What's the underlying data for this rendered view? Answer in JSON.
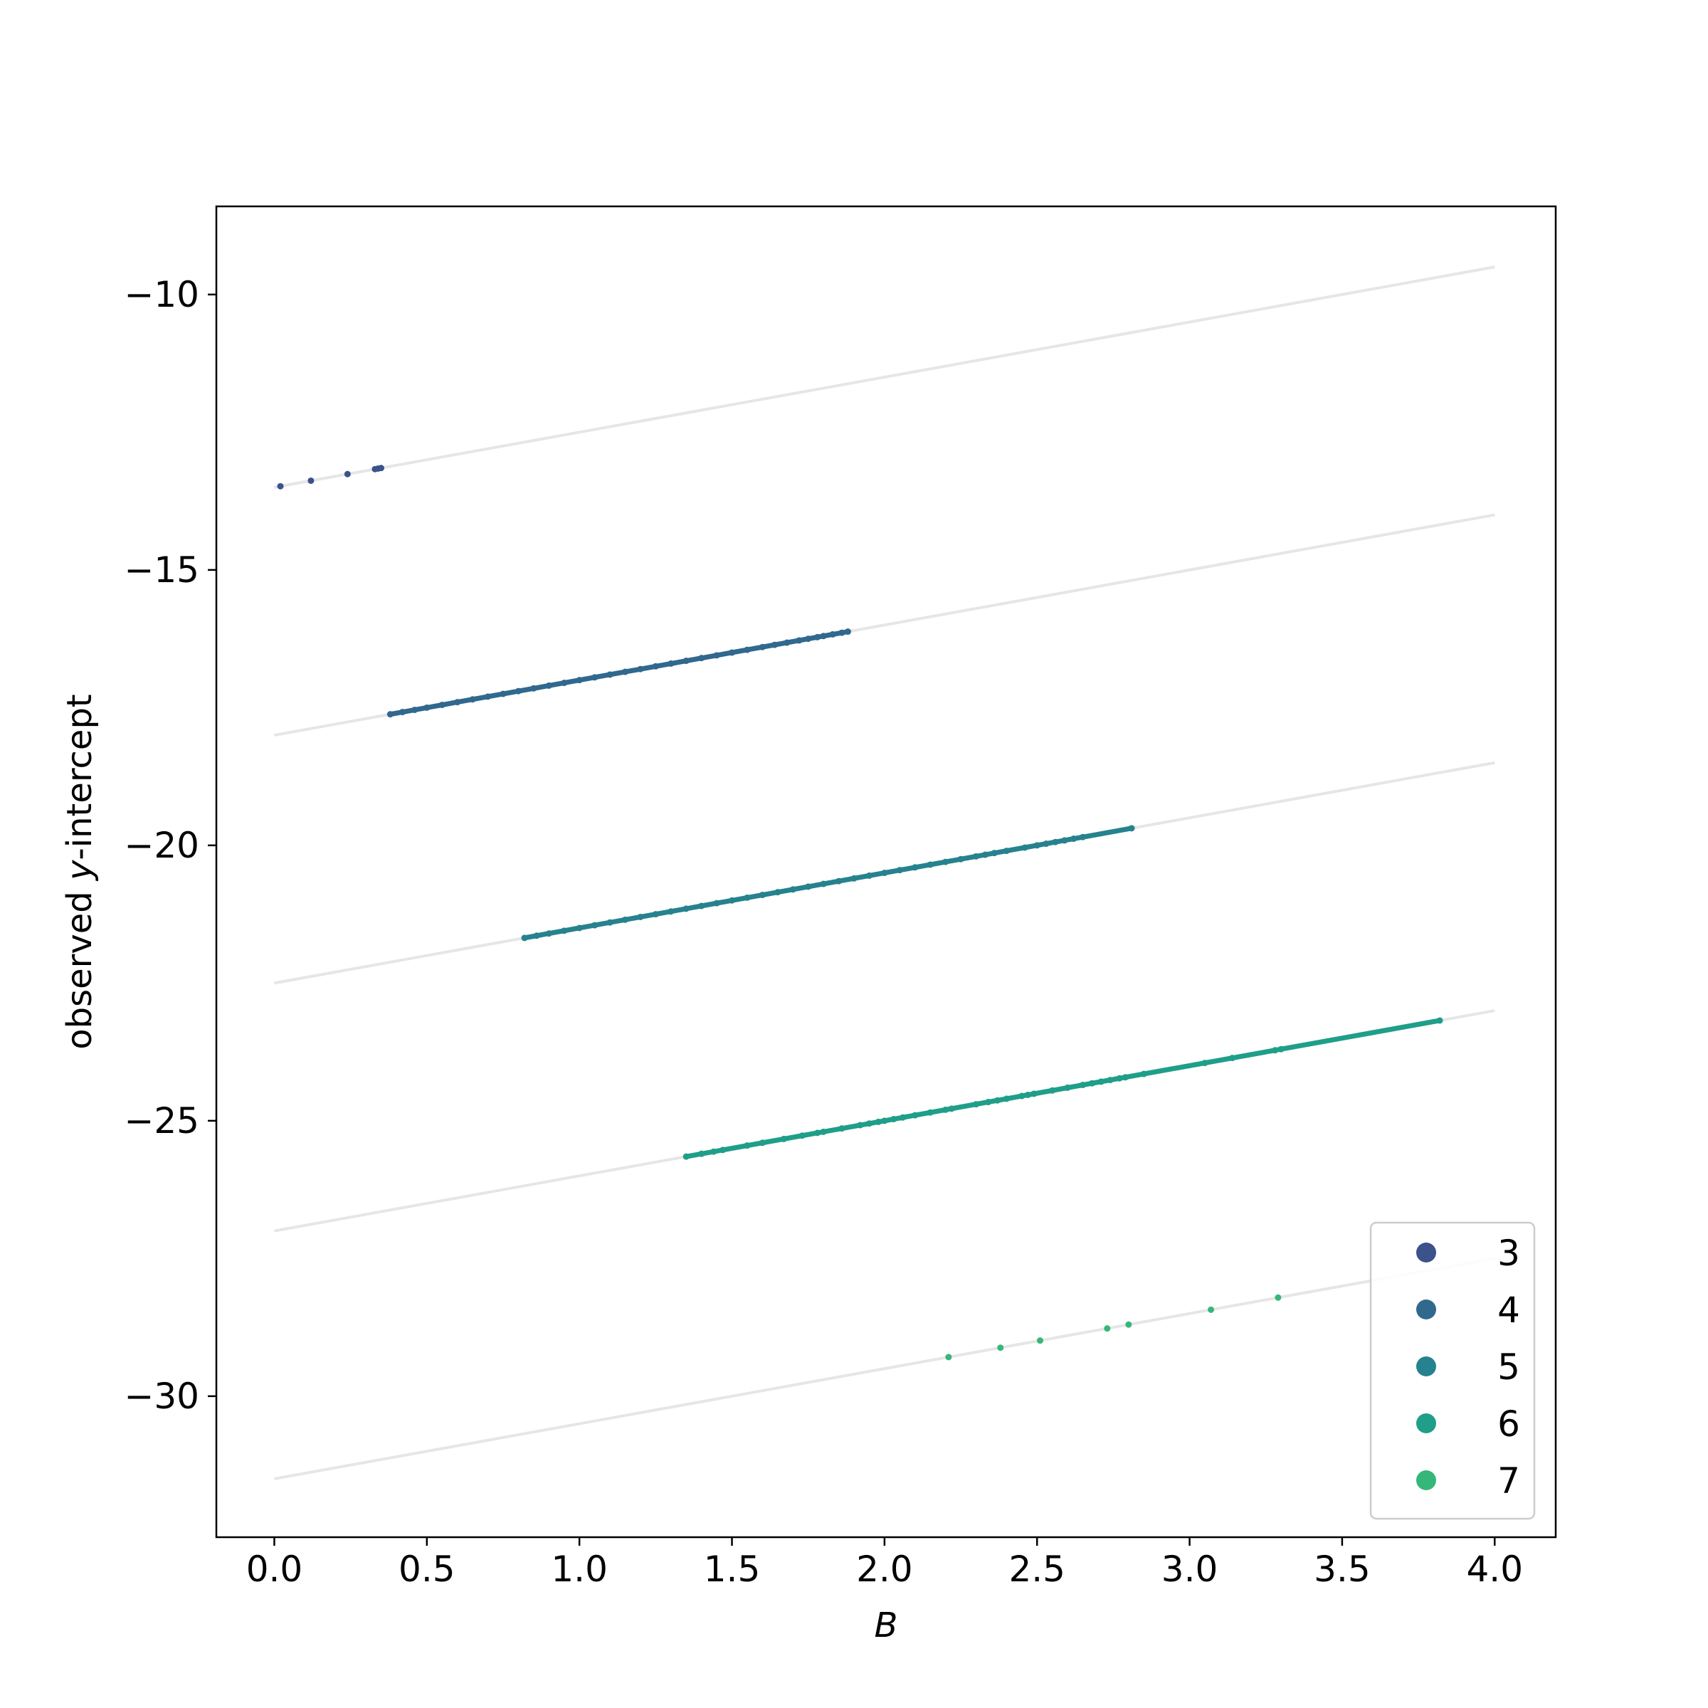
{
  "chart_data": {
    "type": "scatter",
    "title": "",
    "xlabel": "B",
    "ylabel_prefix": "observed ",
    "ylabel_italic": "y",
    "ylabel_suffix": "-intercept",
    "xlim": [
      -0.19,
      4.2
    ],
    "ylim": [
      -32.56,
      -8.4
    ],
    "xticks": [
      0.0,
      0.5,
      1.0,
      1.5,
      2.0,
      2.5,
      3.0,
      3.5,
      4.0
    ],
    "xtick_labels": [
      "0.0",
      "0.5",
      "1.0",
      "1.5",
      "2.0",
      "2.5",
      "3.0",
      "3.5",
      "4.0"
    ],
    "yticks": [
      -10,
      -15,
      -20,
      -25,
      -30
    ],
    "ytick_labels": [
      "−10",
      "−15",
      "−20",
      "−25",
      "−30"
    ],
    "grid": false,
    "legend_position": "lower right",
    "reference_lines": [
      {
        "x": [
          0,
          4
        ],
        "y": [
          -13.5,
          -9.5
        ]
      },
      {
        "x": [
          0,
          4
        ],
        "y": [
          -18.0,
          -14.0
        ]
      },
      {
        "x": [
          0,
          4
        ],
        "y": [
          -22.5,
          -18.5
        ]
      },
      {
        "x": [
          0,
          4
        ],
        "y": [
          -27.0,
          -23.0
        ]
      },
      {
        "x": [
          0,
          4
        ],
        "y": [
          -31.5,
          -27.5
        ]
      }
    ],
    "reference_line_color": "#e6e6e6",
    "series": [
      {
        "name": "3",
        "color": "#3b528b",
        "intercept": -13.5,
        "x": [
          0.02,
          0.12,
          0.24,
          0.33,
          0.34,
          0.35
        ]
      },
      {
        "name": "4",
        "color": "#31688e",
        "intercept": -18.0,
        "x": [
          0.38,
          0.42,
          0.46,
          0.5,
          0.55,
          0.6,
          0.65,
          0.7,
          0.75,
          0.8,
          0.85,
          0.9,
          0.95,
          1.0,
          1.05,
          1.1,
          1.15,
          1.2,
          1.25,
          1.3,
          1.35,
          1.4,
          1.45,
          1.5,
          1.55,
          1.6,
          1.64,
          1.68,
          1.72,
          1.75,
          1.78,
          1.8,
          1.83,
          1.86,
          1.88
        ]
      },
      {
        "name": "5",
        "color": "#26828e",
        "intercept": -22.5,
        "x": [
          0.82,
          0.86,
          0.9,
          0.95,
          1.0,
          1.05,
          1.1,
          1.15,
          1.2,
          1.25,
          1.3,
          1.35,
          1.4,
          1.45,
          1.5,
          1.55,
          1.6,
          1.65,
          1.7,
          1.75,
          1.8,
          1.85,
          1.9,
          1.95,
          2.0,
          2.05,
          2.1,
          2.15,
          2.2,
          2.25,
          2.3,
          2.33,
          2.36,
          2.4,
          2.46,
          2.5,
          2.53,
          2.56,
          2.59,
          2.62,
          2.65,
          2.81
        ]
      },
      {
        "name": "6",
        "color": "#1f9e89",
        "intercept": -27.0,
        "x": [
          1.35,
          1.4,
          1.44,
          1.47,
          1.55,
          1.6,
          1.67,
          1.73,
          1.78,
          1.8,
          1.86,
          1.92,
          1.95,
          1.98,
          2.0,
          2.03,
          2.06,
          2.1,
          2.15,
          2.2,
          2.22,
          2.3,
          2.34,
          2.37,
          2.4,
          2.45,
          2.47,
          2.49,
          2.55,
          2.6,
          2.65,
          2.68,
          2.71,
          2.74,
          2.77,
          2.79,
          2.85,
          3.05,
          3.14,
          3.28,
          3.3,
          3.82
        ]
      },
      {
        "name": "7",
        "color": "#35b779",
        "intercept": -31.5,
        "x": [
          2.21,
          2.38,
          2.51,
          2.73,
          2.8,
          3.07,
          3.29
        ]
      }
    ]
  }
}
